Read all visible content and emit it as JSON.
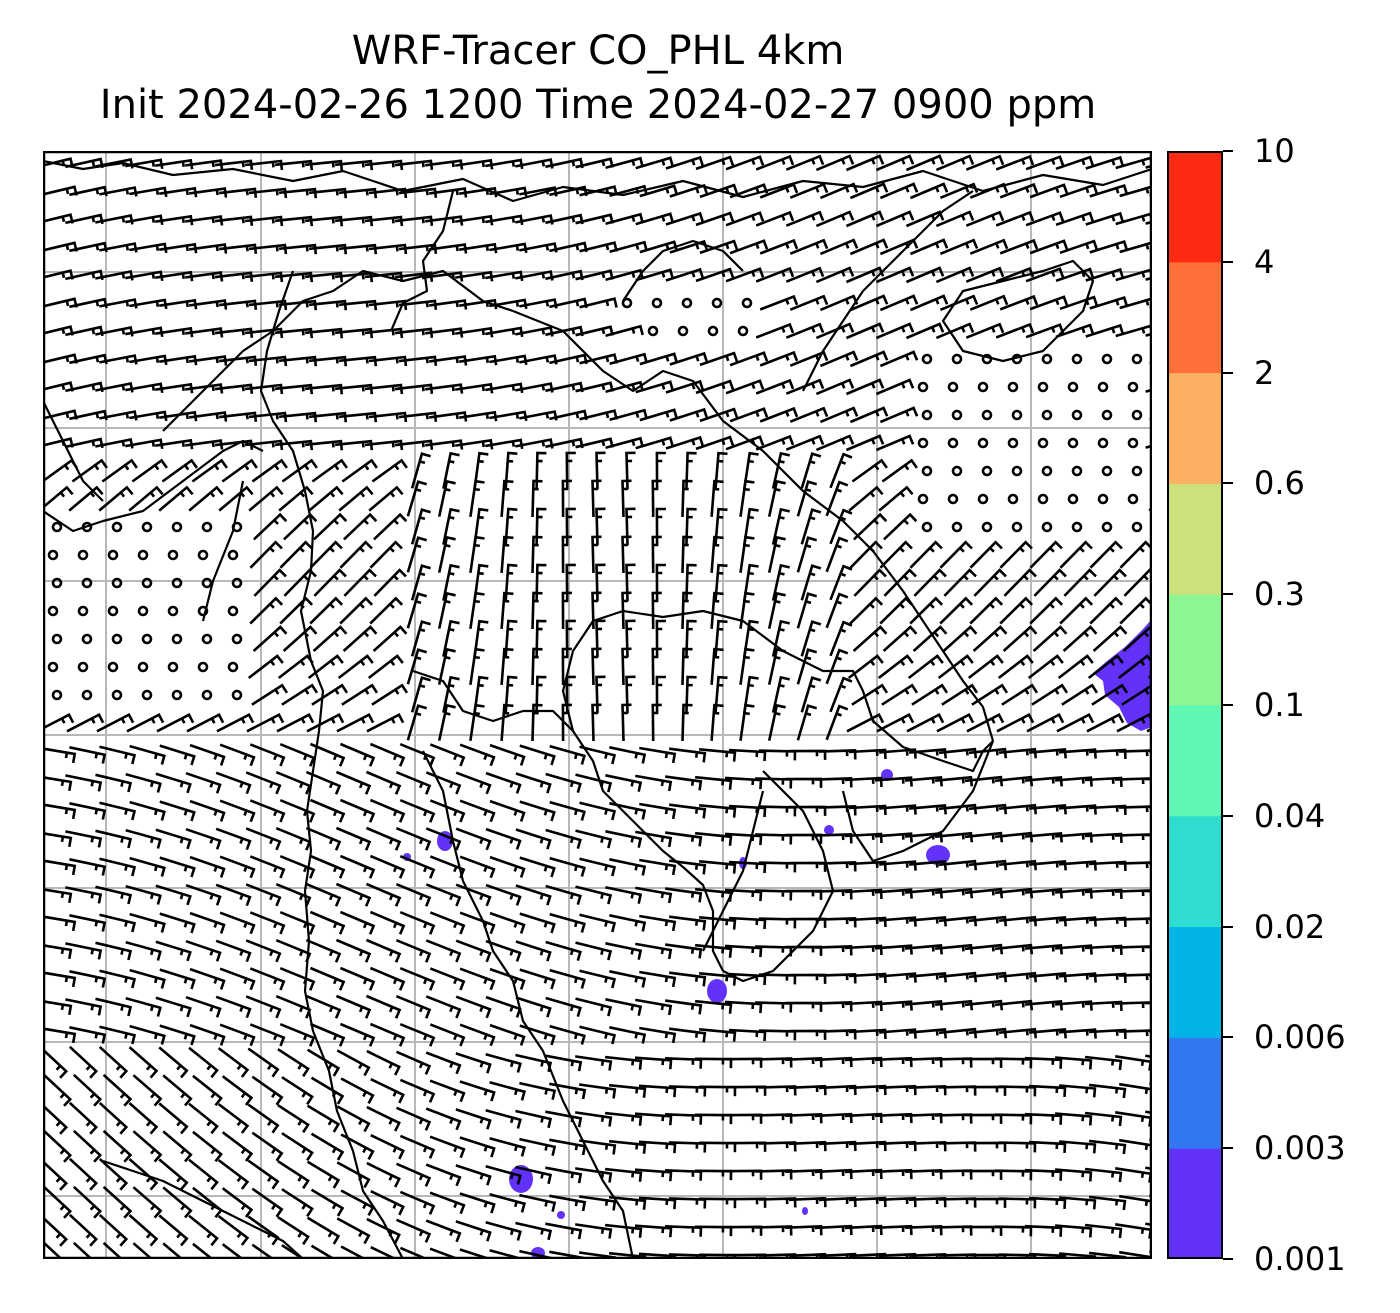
{
  "title": {
    "line1": "WRF-Tracer CO_PHL 4km",
    "line2": "Init 2024-02-26 1200 Time 2024-02-27 0900 ppm"
  },
  "colorbar": {
    "levels": [
      "0.001",
      "0.003",
      "0.006",
      "0.02",
      "0.04",
      "0.1",
      "0.3",
      "0.6",
      "2",
      "4",
      "10"
    ],
    "colors": [
      "#6232fa",
      "#3378f0",
      "#00b4e8",
      "#2edcd0",
      "#5ef8b4",
      "#8ef594",
      "#cde07e",
      "#fcb062",
      "#ff6f3a",
      "#ff2a14"
    ]
  },
  "map": {
    "plume_color": "#6232fa",
    "barb_color": "#000000",
    "grid_color": "#b8b8b8",
    "coast_color": "#000000"
  }
}
